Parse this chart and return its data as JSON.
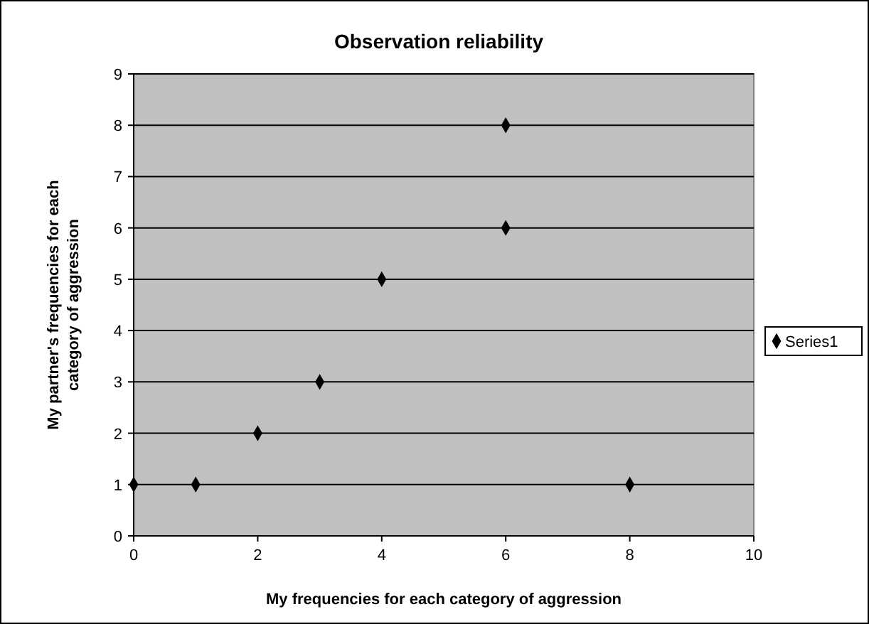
{
  "chart_data": {
    "type": "scatter",
    "title": "Observation reliability",
    "xlabel": "My frequencies for each category of aggression",
    "ylabel": "My partner's frequencies for each category of aggression",
    "x": [
      0,
      1,
      2,
      3,
      4,
      6,
      6,
      8
    ],
    "series": [
      {
        "name": "Series1",
        "color": "#000000",
        "values": [
          1,
          1,
          2,
          3,
          5,
          6,
          8,
          1
        ]
      }
    ],
    "xlim": [
      0,
      10
    ],
    "xticks": [
      0,
      2,
      4,
      6,
      8,
      10
    ],
    "ylim": [
      0,
      9
    ],
    "yticks": [
      0,
      1,
      2,
      3,
      4,
      5,
      6,
      7,
      8,
      9
    ],
    "grid": "y",
    "legend": "right",
    "marker": "diamond"
  }
}
